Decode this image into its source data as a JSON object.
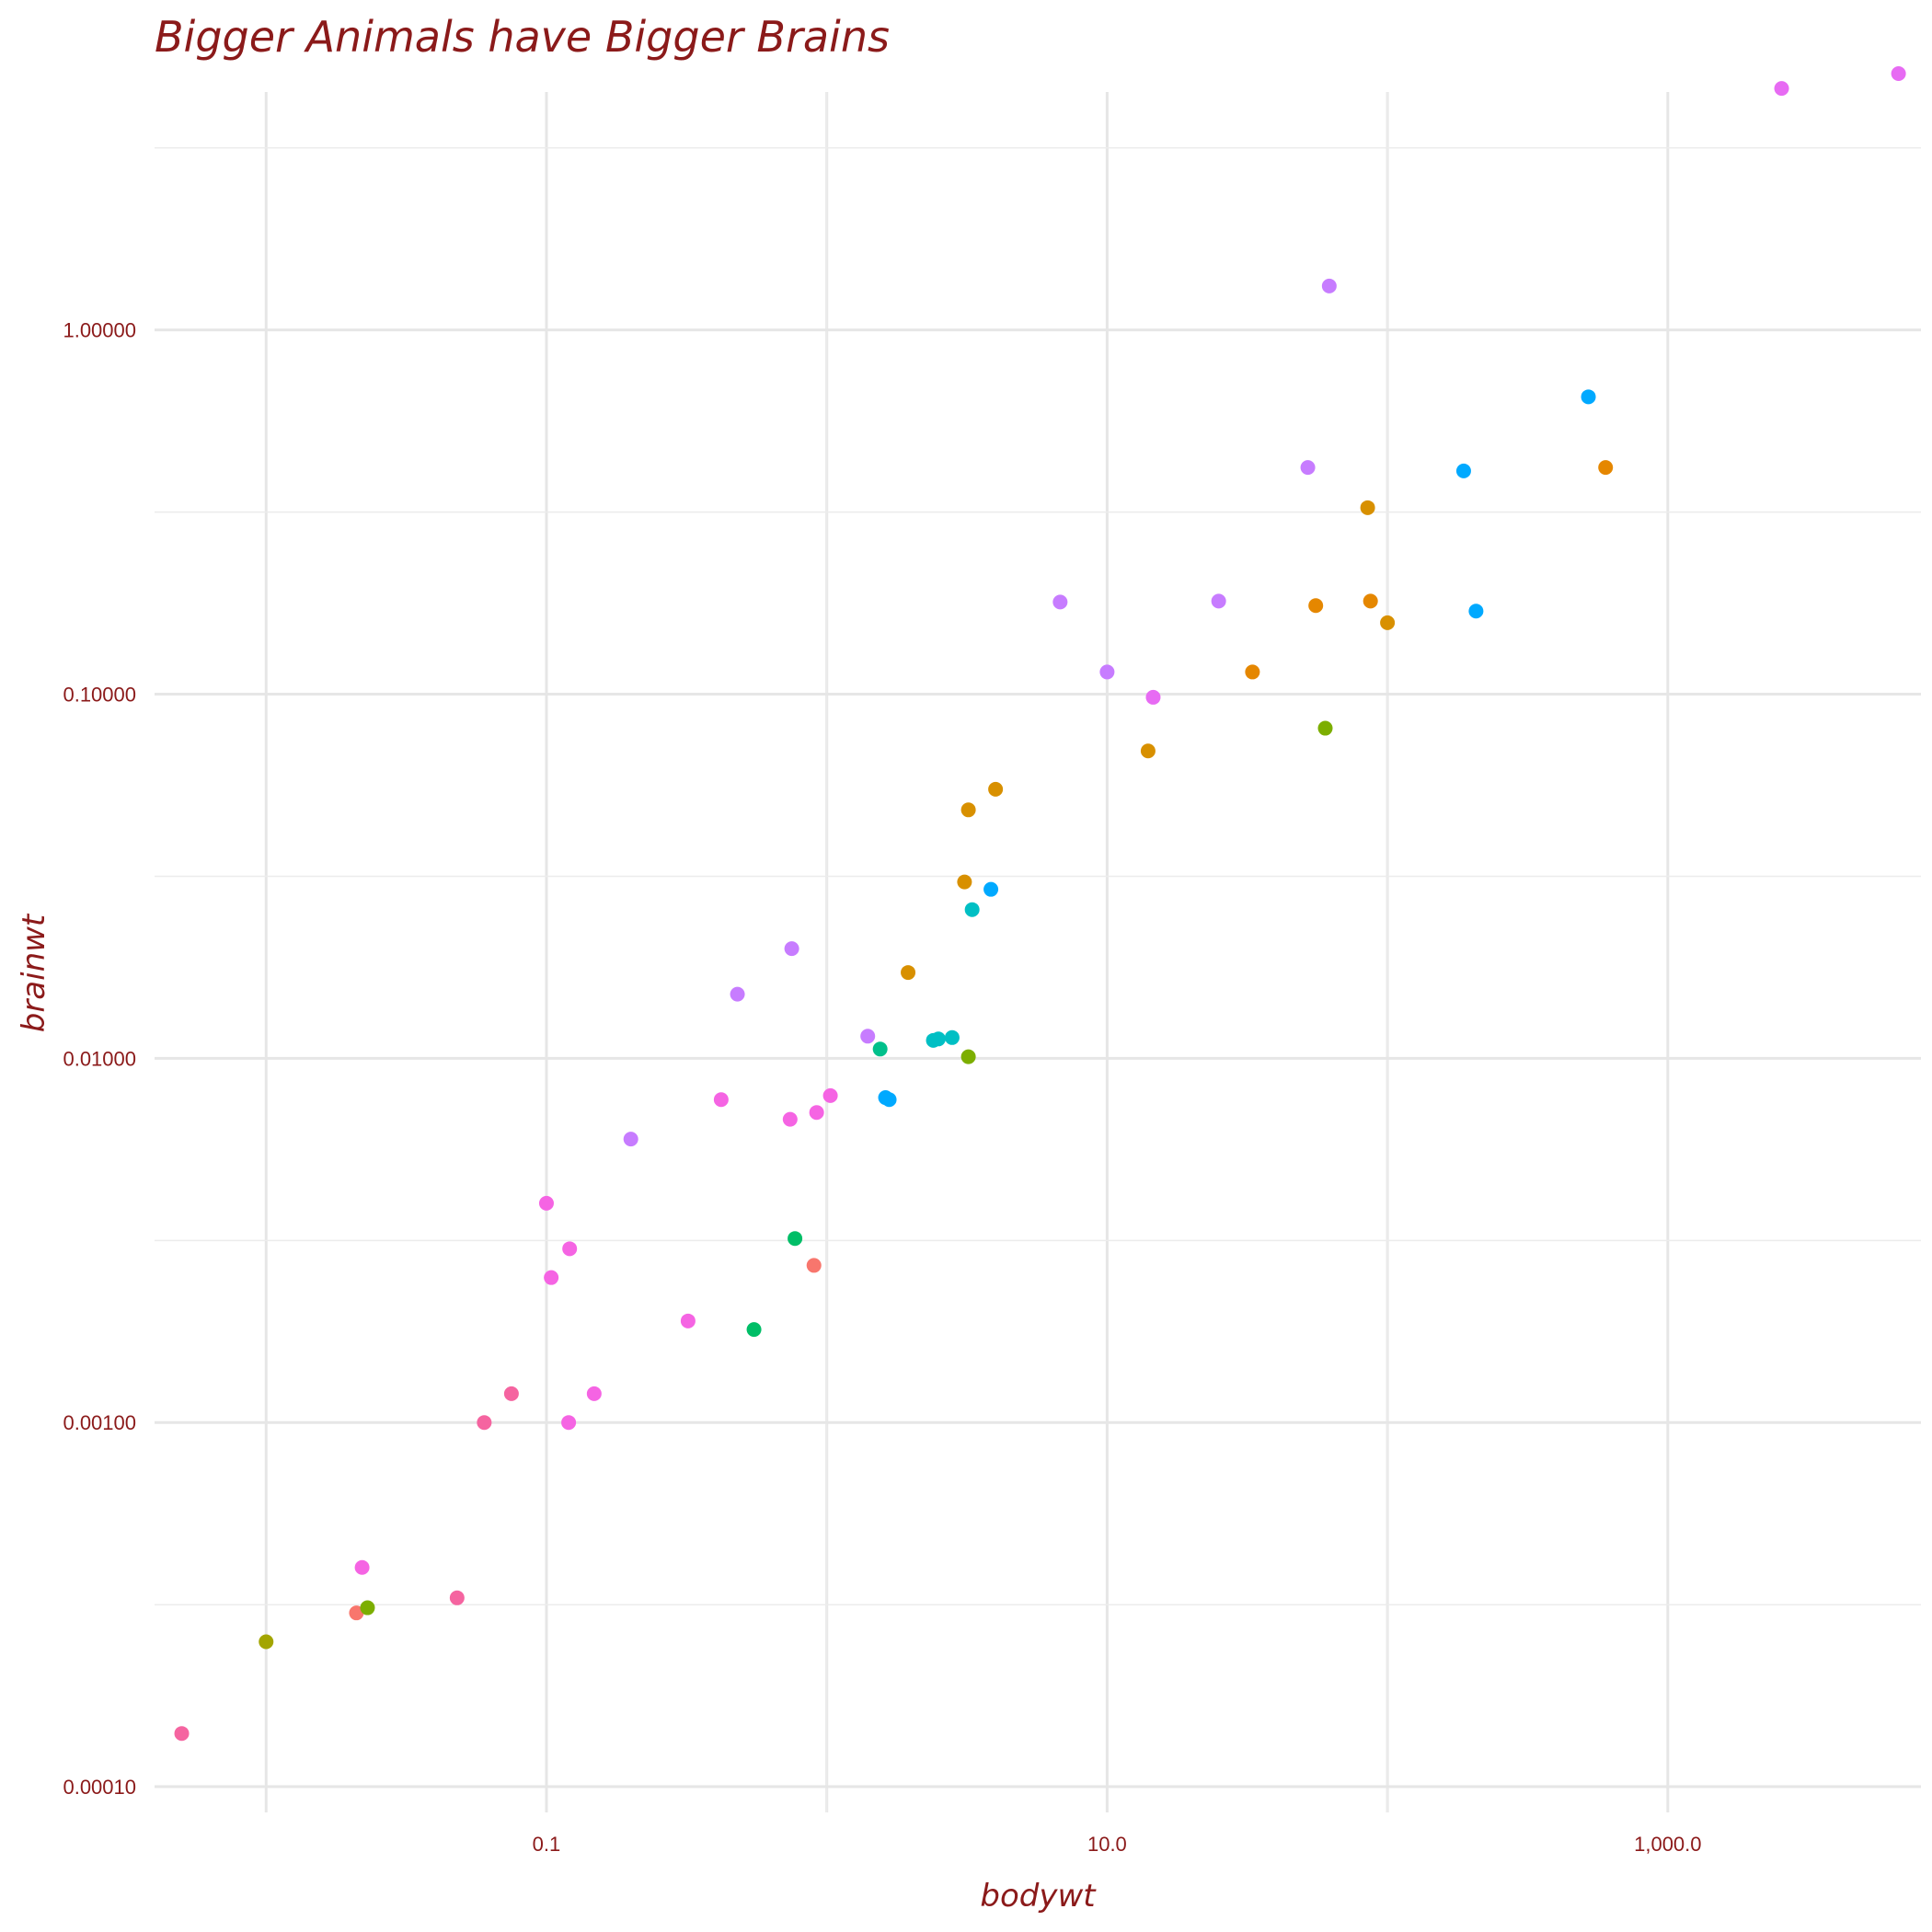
{
  "chart_data": {
    "type": "scatter",
    "title": "Bigger Animals have Bigger Brains",
    "xlabel": "bodywt",
    "ylabel": "brainwt",
    "x_scale": "log10",
    "y_scale": "log10",
    "xlim": [
      0.004,
      8000
    ],
    "ylim": [
      8.5e-05,
      4.5
    ],
    "x_ticks": [
      0.1,
      10.0,
      1000.0
    ],
    "x_tick_labels": [
      "0.1",
      "10.0",
      "1,000.0"
    ],
    "y_ticks": [
      0.0001,
      0.001,
      0.01,
      0.1,
      1.0
    ],
    "y_tick_labels": [
      "0.00010",
      "0.00100",
      "0.01000",
      "0.10000",
      "1.00000"
    ],
    "grid": true,
    "legend": "none",
    "points": [
      {
        "x": 0.005,
        "y": 0.00014,
        "color": "#f564a0"
      },
      {
        "x": 0.01,
        "y": 0.00025,
        "color": "#a3a500"
      },
      {
        "x": 0.021,
        "y": 0.0003,
        "color": "#f8766d"
      },
      {
        "x": 0.023,
        "y": 0.00031,
        "color": "#7cae00"
      },
      {
        "x": 0.022,
        "y": 0.0004,
        "color": "#f564e3"
      },
      {
        "x": 0.048,
        "y": 0.00033,
        "color": "#f564a0"
      },
      {
        "x": 0.06,
        "y": 0.001,
        "color": "#f564a0"
      },
      {
        "x": 0.075,
        "y": 0.0012,
        "color": "#f564a0"
      },
      {
        "x": 0.12,
        "y": 0.001,
        "color": "#f564e3"
      },
      {
        "x": 0.148,
        "y": 0.0012,
        "color": "#f564e3"
      },
      {
        "x": 0.104,
        "y": 0.0025,
        "color": "#f564e3"
      },
      {
        "x": 0.1,
        "y": 0.004,
        "color": "#f564e3"
      },
      {
        "x": 0.121,
        "y": 0.003,
        "color": "#f564e3"
      },
      {
        "x": 0.2,
        "y": 0.006,
        "color": "#c77cff"
      },
      {
        "x": 0.32,
        "y": 0.0019,
        "color": "#f564e3"
      },
      {
        "x": 0.42,
        "y": 0.0077,
        "color": "#f564e3"
      },
      {
        "x": 0.48,
        "y": 0.015,
        "color": "#c77cff"
      },
      {
        "x": 0.55,
        "y": 0.0018,
        "color": "#00be67"
      },
      {
        "x": 0.74,
        "y": 0.0068,
        "color": "#f564e3"
      },
      {
        "x": 0.75,
        "y": 0.02,
        "color": "#c77cff"
      },
      {
        "x": 0.77,
        "y": 0.0032,
        "color": "#00be67"
      },
      {
        "x": 0.9,
        "y": 0.0027,
        "color": "#f8766d"
      },
      {
        "x": 0.92,
        "y": 0.0071,
        "color": "#f564e3"
      },
      {
        "x": 1.03,
        "y": 0.0079,
        "color": "#f564e3"
      },
      {
        "x": 1.4,
        "y": 0.0115,
        "color": "#c77cff"
      },
      {
        "x": 1.55,
        "y": 0.0106,
        "color": "#00c08b"
      },
      {
        "x": 1.62,
        "y": 0.0078,
        "color": "#00a9ff"
      },
      {
        "x": 1.67,
        "y": 0.0077,
        "color": "#00a9ff"
      },
      {
        "x": 1.95,
        "y": 0.0172,
        "color": "#d89000"
      },
      {
        "x": 2.4,
        "y": 0.0112,
        "color": "#00bfc4"
      },
      {
        "x": 2.5,
        "y": 0.0113,
        "color": "#00bfc4"
      },
      {
        "x": 2.8,
        "y": 0.0114,
        "color": "#00bfc4"
      },
      {
        "x": 3.2,
        "y": 0.0101,
        "color": "#7cae00"
      },
      {
        "x": 3.3,
        "y": 0.0256,
        "color": "#00bfc4"
      },
      {
        "x": 3.1,
        "y": 0.0305,
        "color": "#d89000"
      },
      {
        "x": 3.85,
        "y": 0.0291,
        "color": "#00a9ff"
      },
      {
        "x": 3.2,
        "y": 0.0481,
        "color": "#d89000"
      },
      {
        "x": 4.0,
        "y": 0.0548,
        "color": "#d89000"
      },
      {
        "x": 6.8,
        "y": 0.179,
        "color": "#c77cff"
      },
      {
        "x": 10.0,
        "y": 0.115,
        "color": "#c77cff"
      },
      {
        "x": 14.0,
        "y": 0.0698,
        "color": "#d89000"
      },
      {
        "x": 14.6,
        "y": 0.098,
        "color": "#e76bf3"
      },
      {
        "x": 25.0,
        "y": 0.18,
        "color": "#c77cff"
      },
      {
        "x": 33.0,
        "y": 0.115,
        "color": "#e58700"
      },
      {
        "x": 52.0,
        "y": 0.419,
        "color": "#c77cff"
      },
      {
        "x": 55.5,
        "y": 0.175,
        "color": "#e58700"
      },
      {
        "x": 60.0,
        "y": 0.0806,
        "color": "#7cae00"
      },
      {
        "x": 62.0,
        "y": 1.32,
        "color": "#c77cff"
      },
      {
        "x": 85.0,
        "y": 0.325,
        "color": "#d89000"
      },
      {
        "x": 87.0,
        "y": 0.18,
        "color": "#e58700"
      },
      {
        "x": 100.0,
        "y": 0.157,
        "color": "#d89000"
      },
      {
        "x": 187.0,
        "y": 0.41,
        "color": "#00a9ff"
      },
      {
        "x": 207.0,
        "y": 0.169,
        "color": "#00a9ff"
      },
      {
        "x": 521.0,
        "y": 0.655,
        "color": "#00a9ff"
      },
      {
        "x": 600.0,
        "y": 0.419,
        "color": "#e58700"
      },
      {
        "x": 2547.0,
        "y": 4.603,
        "color": "#e76bf3"
      },
      {
        "x": 6654.0,
        "y": 5.712,
        "color": "#e76bf3"
      }
    ]
  }
}
